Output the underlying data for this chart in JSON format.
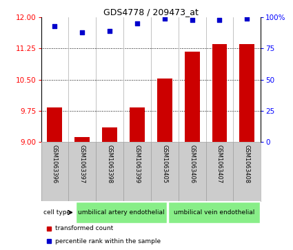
{
  "title": "GDS4778 / 209473_at",
  "samples": [
    "GSM1063396",
    "GSM1063397",
    "GSM1063398",
    "GSM1063399",
    "GSM1063405",
    "GSM1063406",
    "GSM1063407",
    "GSM1063408"
  ],
  "bar_values": [
    9.82,
    9.12,
    9.35,
    9.83,
    10.52,
    11.17,
    11.35,
    11.35
  ],
  "percentile_values": [
    93,
    88,
    89,
    95,
    99,
    98,
    98,
    99
  ],
  "ylim_left": [
    9,
    12
  ],
  "ylim_right": [
    0,
    100
  ],
  "yticks_left": [
    9,
    9.75,
    10.5,
    11.25,
    12
  ],
  "yticks_right": [
    0,
    25,
    50,
    75,
    100
  ],
  "bar_color": "#cc0000",
  "scatter_color": "#0000cc",
  "cell_types": [
    {
      "label": "umbilical artery endothelial",
      "start": 0,
      "end": 4
    },
    {
      "label": "umbilical vein endothelial",
      "start": 4,
      "end": 8
    }
  ],
  "green_color": "#88ee88",
  "legend_items": [
    {
      "label": "transformed count",
      "color": "#cc0000"
    },
    {
      "label": "percentile rank within the sample",
      "color": "#0000cc"
    }
  ],
  "bg_color": "#ffffff",
  "gray_color": "#cccccc"
}
